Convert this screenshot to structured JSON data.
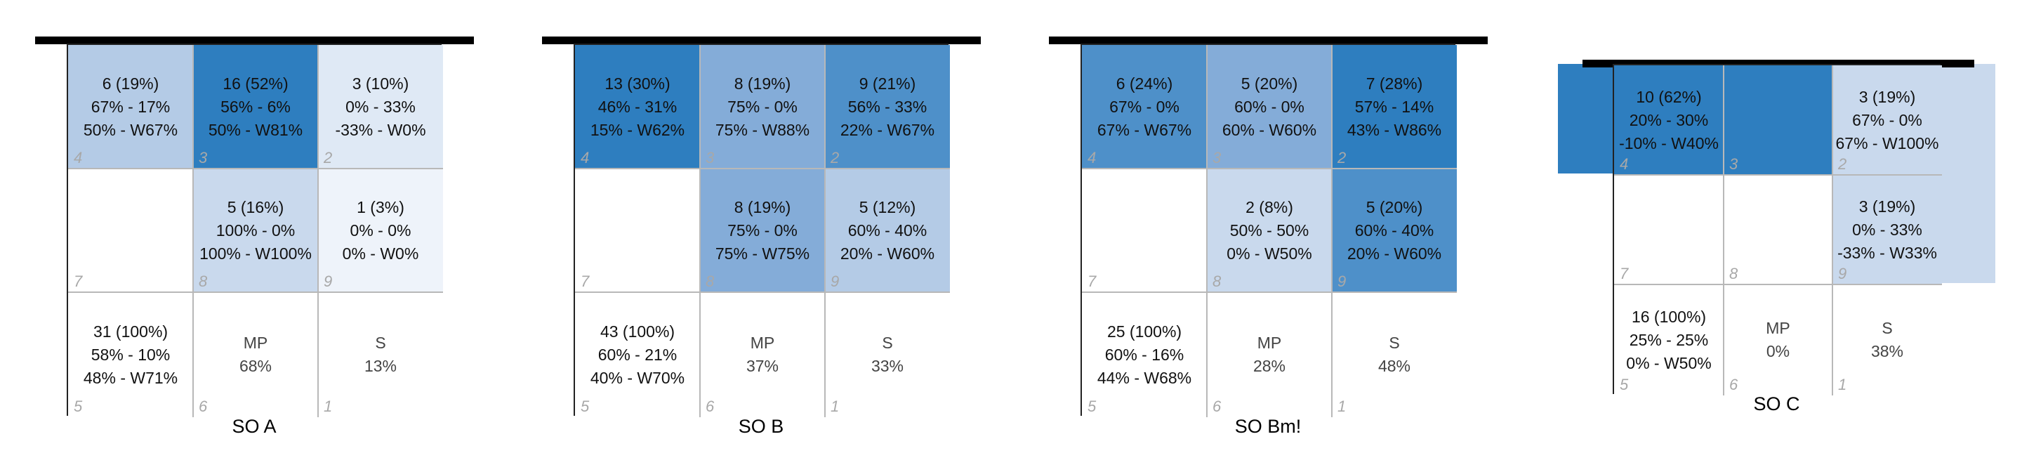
{
  "colors": {
    "c1": "#2e7ebf",
    "c2": "#4e90c9",
    "c3": "#84acd8",
    "c4": "#b4cbe6",
    "c5": "#c9d9ed",
    "c6": "#dfe9f5",
    "c7": "#eef3fa",
    "white": "#ffffff"
  },
  "panels": [
    {
      "title": "SO A",
      "cells": {
        "c4": {
          "lines": [
            "6 (19%)",
            "67% - 17%",
            "50% - W67%"
          ],
          "num": "4",
          "color": "c4"
        },
        "c3": {
          "lines": [
            "16 (52%)",
            "56% - 6%",
            "50% - W81%"
          ],
          "num": "3",
          "color": "c1"
        },
        "c2": {
          "lines": [
            "3 (10%)",
            "0% - 33%",
            "-33% - W0%"
          ],
          "num": "2",
          "color": "c6"
        },
        "c7": {
          "lines": [],
          "num": "7",
          "color": "white"
        },
        "c8": {
          "lines": [
            "5 (16%)",
            "100% - 0%",
            "100% - W100%"
          ],
          "num": "8",
          "color": "c5"
        },
        "c9": {
          "lines": [
            "1 (3%)",
            "0% - 0%",
            "0% - W0%"
          ],
          "num": "9",
          "color": "c7"
        },
        "c5": {
          "lines": [
            "31 (100%)",
            "58% - 10%",
            "48% - W71%"
          ],
          "num": "5",
          "color": "white"
        },
        "c6": {
          "lines": [
            "MP",
            "68%"
          ],
          "num": "6",
          "color": "white"
        },
        "c1": {
          "lines": [
            "S",
            "13%"
          ],
          "num": "1",
          "color": "white"
        }
      }
    },
    {
      "title": "SO B",
      "cells": {
        "c4": {
          "lines": [
            "13 (30%)",
            "46% - 31%",
            "15% - W62%"
          ],
          "num": "4",
          "color": "c1"
        },
        "c3": {
          "lines": [
            "8 (19%)",
            "75% - 0%",
            "75% - W88%"
          ],
          "num": "3",
          "color": "c3"
        },
        "c2": {
          "lines": [
            "9 (21%)",
            "56% - 33%",
            "22% - W67%"
          ],
          "num": "2",
          "color": "c2"
        },
        "c7": {
          "lines": [],
          "num": "7",
          "color": "white"
        },
        "c8": {
          "lines": [
            "8 (19%)",
            "75% - 0%",
            "75% - W75%"
          ],
          "num": "8",
          "color": "c3"
        },
        "c9": {
          "lines": [
            "5 (12%)",
            "60% - 40%",
            "20% - W60%"
          ],
          "num": "9",
          "color": "c4"
        },
        "c5": {
          "lines": [
            "43 (100%)",
            "60% - 21%",
            "40% - W70%"
          ],
          "num": "5",
          "color": "white"
        },
        "c6": {
          "lines": [
            "MP",
            "37%"
          ],
          "num": "6",
          "color": "white"
        },
        "c1": {
          "lines": [
            "S",
            "33%"
          ],
          "num": "1",
          "color": "white"
        }
      }
    },
    {
      "title": "SO Bm!",
      "cells": {
        "c4": {
          "lines": [
            "6 (24%)",
            "67% - 0%",
            "67% - W67%"
          ],
          "num": "4",
          "color": "c2"
        },
        "c3": {
          "lines": [
            "5 (20%)",
            "60% - 0%",
            "60% - W60%"
          ],
          "num": "3",
          "color": "c3"
        },
        "c2": {
          "lines": [
            "7 (28%)",
            "57% - 14%",
            "43% - W86%"
          ],
          "num": "2",
          "color": "c1"
        },
        "c7": {
          "lines": [],
          "num": "7",
          "color": "white"
        },
        "c8": {
          "lines": [
            "2 (8%)",
            "50% - 50%",
            "0% - W50%"
          ],
          "num": "8",
          "color": "c5"
        },
        "c9": {
          "lines": [
            "5 (20%)",
            "60% - 40%",
            "20% - W60%"
          ],
          "num": "9",
          "color": "c2"
        },
        "c5": {
          "lines": [
            "25 (100%)",
            "60% - 16%",
            "44% - W68%"
          ],
          "num": "5",
          "color": "white"
        },
        "c6": {
          "lines": [
            "MP",
            "28%"
          ],
          "num": "6",
          "color": "white"
        },
        "c1": {
          "lines": [
            "S",
            "48%"
          ],
          "num": "1",
          "color": "white"
        }
      }
    },
    {
      "title": "SO C",
      "cells": {
        "c4": {
          "lines": [
            "10 (62%)",
            "20% - 30%",
            "-10% - W40%"
          ],
          "num": "4",
          "color": "c1"
        },
        "c3": {
          "lines": [],
          "num": "3",
          "color": "c1"
        },
        "c2": {
          "lines": [
            "3 (19%)",
            "67% - 0%",
            "67% - W100%"
          ],
          "num": "2",
          "color": "c5"
        },
        "c7": {
          "lines": [],
          "num": "7",
          "color": "white"
        },
        "c8": {
          "lines": [],
          "num": "8",
          "color": "white"
        },
        "c9": {
          "lines": [
            "3 (19%)",
            "0% - 33%",
            "-33% - W33%"
          ],
          "num": "9",
          "color": "c5"
        },
        "c5": {
          "lines": [
            "16 (100%)",
            "25% - 25%",
            "0% - W50%"
          ],
          "num": "5",
          "color": "white"
        },
        "c6": {
          "lines": [
            "MP",
            "0%"
          ],
          "num": "6",
          "color": "white"
        },
        "c1": {
          "lines": [
            "S",
            "38%"
          ],
          "num": "1",
          "color": "white"
        }
      }
    }
  ]
}
